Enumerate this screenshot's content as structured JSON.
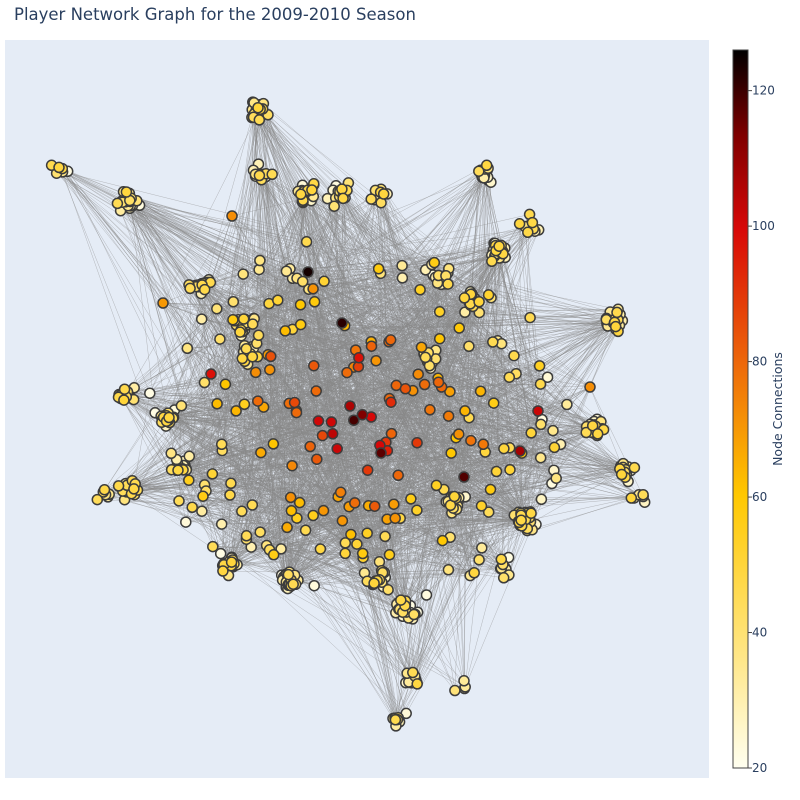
{
  "chart_data": {
    "type": "network",
    "title": "Player Network Graph for the 2009-2010 Season",
    "node_count_estimate": 600,
    "colorbar": {
      "title": "Node Connections",
      "range": [
        20,
        126
      ],
      "ticks": [
        20,
        40,
        60,
        80,
        100,
        120
      ],
      "colorscale": [
        [
          0.0,
          "#fffff0"
        ],
        [
          0.15,
          "#ffe78a"
        ],
        [
          0.38,
          "#ffc800"
        ],
        [
          0.56,
          "#ee6a0a"
        ],
        [
          0.75,
          "#d80808"
        ],
        [
          0.88,
          "#800000"
        ],
        [
          1.0,
          "#000000"
        ]
      ]
    },
    "plot_background": "#e5ecf6",
    "edge_color": "#888888",
    "node_outline_color": "#3c3c3c"
  }
}
